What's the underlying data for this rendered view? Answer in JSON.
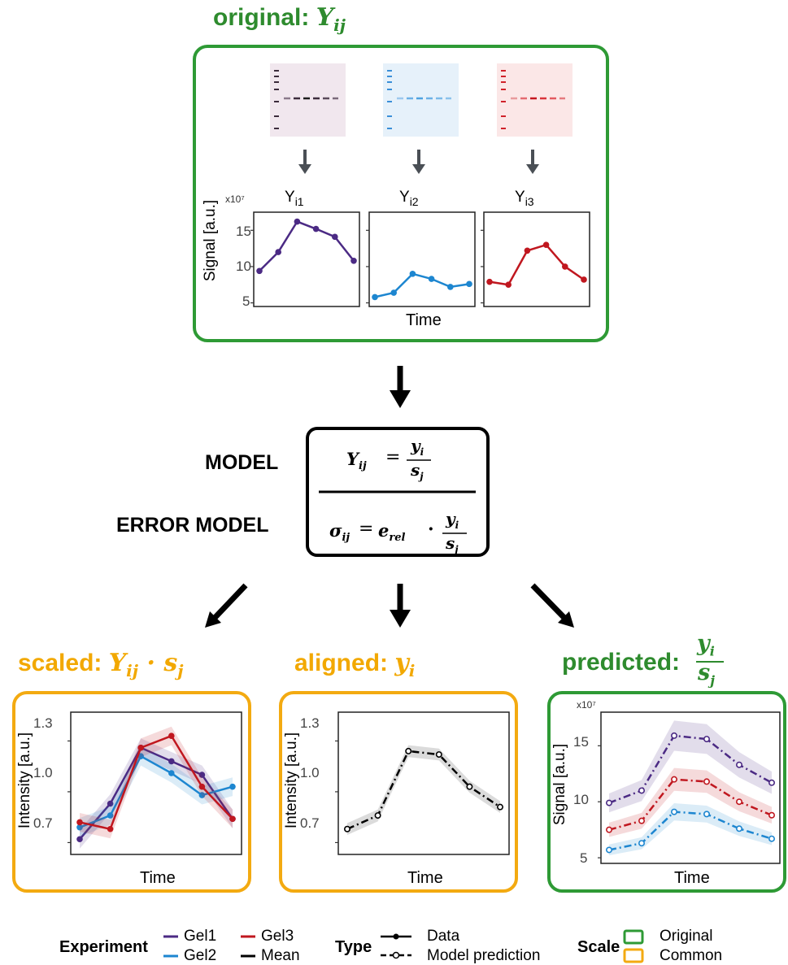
{
  "top": {
    "title_prefix": "original:",
    "title_math": "Y",
    "title_sub": "ij",
    "gel_labels": [
      {
        "main": "Y",
        "sub": "i1"
      },
      {
        "main": "Y",
        "sub": "i2"
      },
      {
        "main": "Y",
        "sub": "i3"
      }
    ],
    "multiplier": "x10⁷",
    "ylabel": "Signal [a.u.]",
    "xlabel": "Time",
    "yticks": [
      "15",
      "10",
      "5"
    ]
  },
  "model": {
    "model_label": "MODEL",
    "error_label": "ERROR MODEL",
    "eq1_lhs": "Y",
    "eq1_lhs_sub": "ij",
    "eq1_num": "y",
    "eq1_num_sub": "i",
    "eq1_den": "s",
    "eq1_den_sub": "j",
    "eq2_lhs": "σ",
    "eq2_lhs_sub": "ij",
    "eq2_e": "e",
    "eq2_e_sub": "rel",
    "eq2_dot": "·"
  },
  "bottom": {
    "scaled_prefix": "scaled:",
    "aligned_prefix": "aligned:",
    "predicted_prefix": "predicted:",
    "intensity_label": "Intensity [a.u.]",
    "signal_label": "Signal [a.u.]",
    "xlabel": "Time",
    "multiplier": "x10⁷",
    "intensity_ticks": [
      "1.3",
      "1.0",
      "0.7"
    ],
    "signal_ticks": [
      "15",
      "10",
      "5"
    ]
  },
  "legend": {
    "experiment_title": "Experiment",
    "experiment_items": [
      "Gel1",
      "Gel3",
      "Gel2",
      "Mean"
    ],
    "type_title": "Type",
    "type_items": [
      "Data",
      "Model prediction"
    ],
    "scale_title": "Scale",
    "scale_items": [
      "Original",
      "Common"
    ]
  },
  "colors": {
    "gel1": "#4B2A84",
    "gel2": "#1D86D0",
    "gel3": "#C0171F",
    "mean": "#000000",
    "green_box": "#2E9A35",
    "orange_box": "#F3AA11"
  },
  "chart_data": [
    {
      "type": "line",
      "panel": "original Yi1",
      "x": [
        1,
        2,
        3,
        4,
        5,
        6
      ],
      "series": [
        {
          "values": [
            9.4,
            12.0,
            16.2,
            15.2,
            14.1,
            10.8
          ]
        }
      ],
      "ylim": [
        4.5,
        17.5
      ]
    },
    {
      "type": "line",
      "panel": "original Yi2",
      "x": [
        1,
        2,
        3,
        4,
        5,
        6
      ],
      "series": [
        {
          "values": [
            5.8,
            6.4,
            9.0,
            8.3,
            7.2,
            7.6
          ]
        }
      ],
      "ylim": [
        4.5,
        17.5
      ]
    },
    {
      "type": "line",
      "panel": "original Yi3",
      "x": [
        1,
        2,
        3,
        4,
        5,
        6
      ],
      "series": [
        {
          "values": [
            7.9,
            7.5,
            12.2,
            13.0,
            10.0,
            8.2
          ]
        }
      ],
      "ylim": [
        4.5,
        17.5
      ]
    },
    {
      "type": "line",
      "panel": "scaled",
      "x": [
        1,
        2,
        3,
        4,
        5,
        6
      ],
      "series": [
        {
          "values": [
            0.72,
            0.93,
            1.26,
            1.18,
            1.1,
            0.84
          ]
        },
        {
          "values": [
            0.79,
            0.86,
            1.21,
            1.11,
            0.98,
            1.03
          ]
        },
        {
          "values": [
            0.82,
            0.78,
            1.26,
            1.33,
            1.03,
            0.84
          ]
        }
      ],
      "ylim": [
        0.63,
        1.47
      ]
    },
    {
      "type": "line",
      "panel": "aligned",
      "x": [
        1,
        2,
        3,
        4,
        5,
        6
      ],
      "series": [
        {
          "values": [
            0.78,
            0.86,
            1.24,
            1.22,
            1.03,
            0.91
          ]
        }
      ],
      "ylim": [
        0.63,
        1.47
      ]
    },
    {
      "type": "line",
      "panel": "predicted",
      "x": [
        1,
        2,
        3,
        4,
        5,
        6
      ],
      "series": [
        {
          "values": [
            9.9,
            11.0,
            15.9,
            15.6,
            13.3,
            11.7
          ]
        },
        {
          "values": [
            7.5,
            8.3,
            12.0,
            11.8,
            10.0,
            8.8
          ]
        },
        {
          "values": [
            5.7,
            6.3,
            9.1,
            8.9,
            7.6,
            6.7
          ]
        }
      ],
      "ylim": [
        4.5,
        18.0
      ]
    }
  ]
}
